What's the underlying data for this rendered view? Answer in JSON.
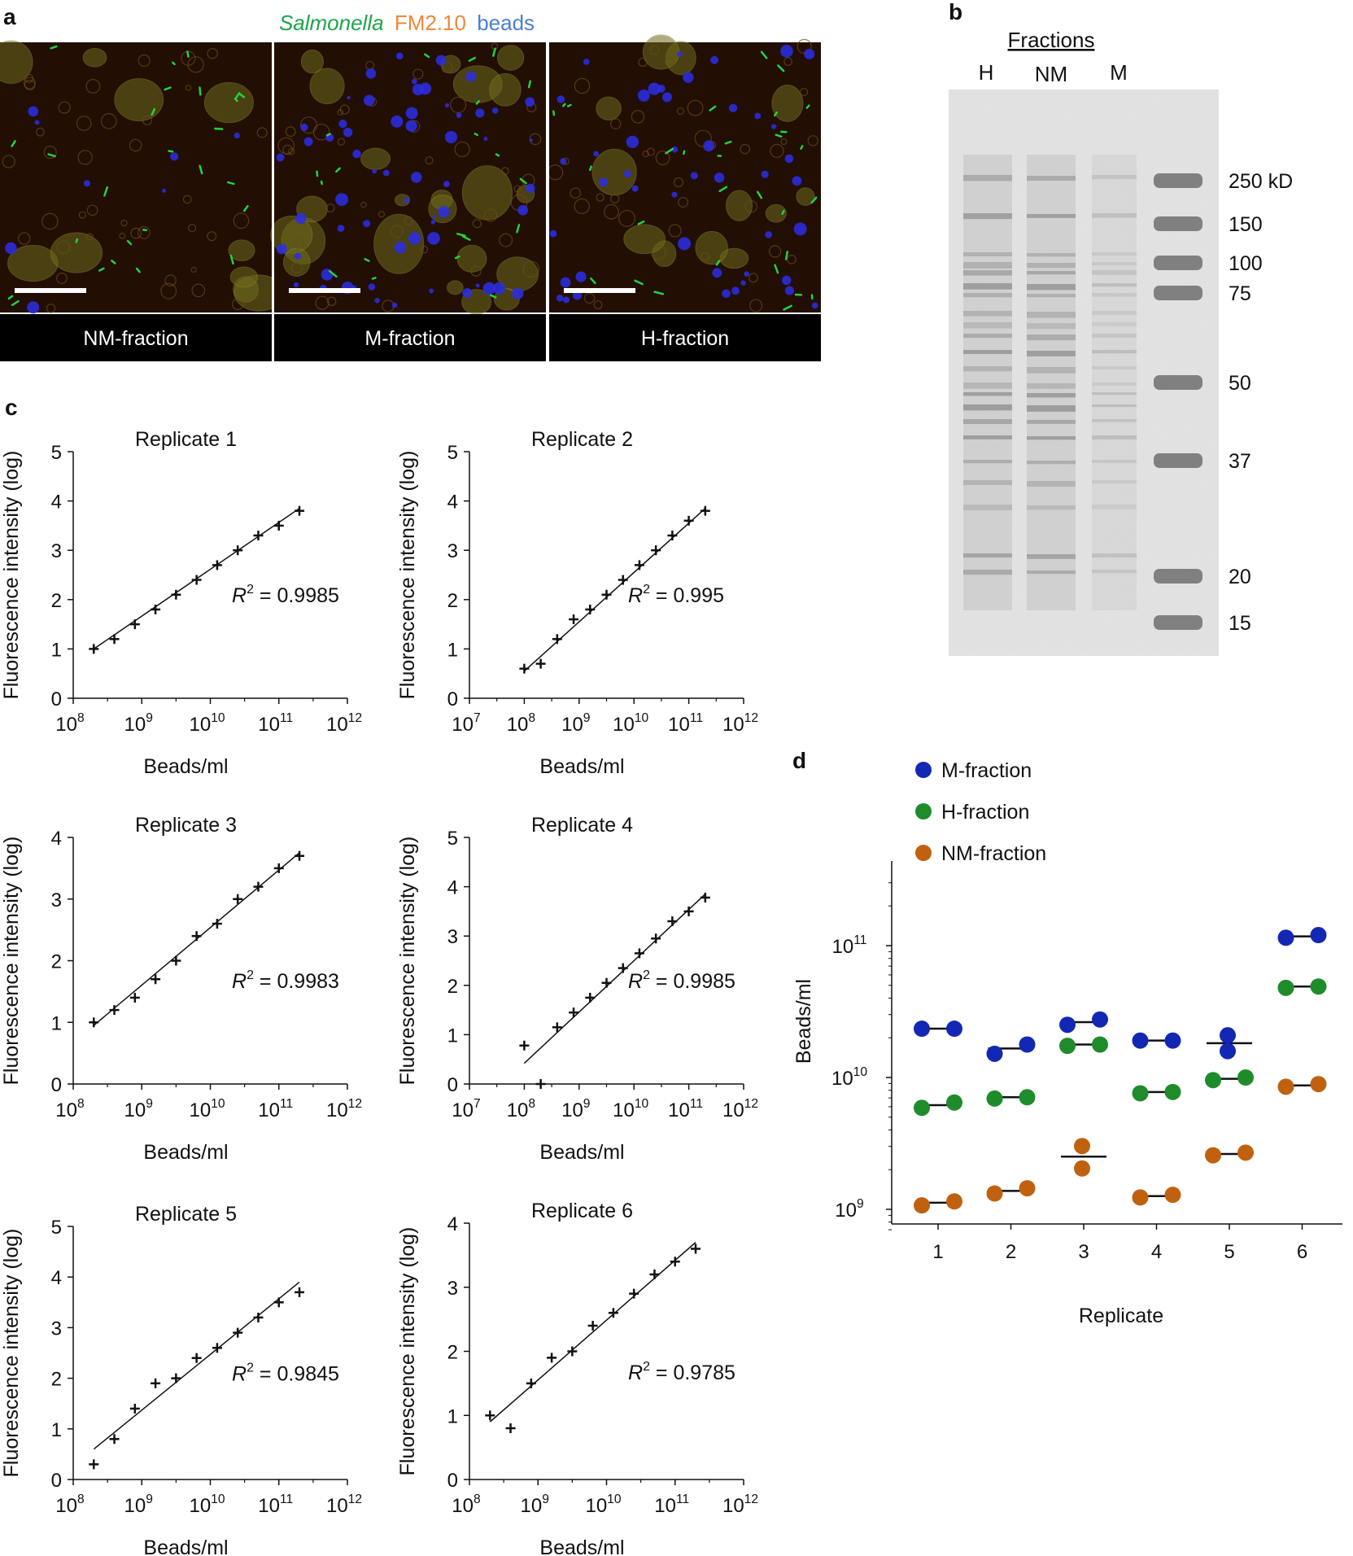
{
  "panel_labels": {
    "a": "a",
    "b": "b",
    "c": "c",
    "d": "d"
  },
  "panel_a": {
    "legend": {
      "salmonella": "Salmonella",
      "fm": "FM2.10",
      "beads": "beads"
    },
    "colors": {
      "salmonella": "#1ca64a",
      "fm": "#f0883a",
      "beads": "#4a7fd0"
    },
    "images": [
      {
        "label": "NM-fraction"
      },
      {
        "label": "M-fraction"
      },
      {
        "label": "H-fraction"
      }
    ]
  },
  "panel_b": {
    "header": "Fractions",
    "lanes": [
      "H",
      "NM",
      "M"
    ],
    "markers": [
      {
        "label": "250 kD",
        "kd": 250
      },
      {
        "label": "150",
        "kd": 150
      },
      {
        "label": "100",
        "kd": 100
      },
      {
        "label": "75",
        "kd": 75
      },
      {
        "label": "50",
        "kd": 50
      },
      {
        "label": "37",
        "kd": 37
      },
      {
        "label": "20",
        "kd": 20
      },
      {
        "label": "15",
        "kd": 15
      }
    ]
  },
  "chart_data": [
    {
      "type": "scatter",
      "title": "Replicate 1",
      "xlabel": "Beads/ml",
      "ylabel": "Fluorescence intensity (log)",
      "x_scale": "log",
      "x_ticks": [
        8,
        9,
        10,
        11,
        12
      ],
      "y_ticks": [
        0,
        1,
        2,
        3,
        4,
        5
      ],
      "ylim": [
        0,
        5
      ],
      "points": [
        [
          8.3,
          1.0
        ],
        [
          8.6,
          1.2
        ],
        [
          8.9,
          1.5
        ],
        [
          9.2,
          1.8
        ],
        [
          9.5,
          2.1
        ],
        [
          9.8,
          2.4
        ],
        [
          10.1,
          2.7
        ],
        [
          10.4,
          3.0
        ],
        [
          10.7,
          3.3
        ],
        [
          11.0,
          3.5
        ],
        [
          11.3,
          3.8
        ]
      ],
      "fit": [
        [
          8.3,
          1.0
        ],
        [
          11.3,
          3.85
        ]
      ],
      "r2": "0.9985"
    },
    {
      "type": "scatter",
      "title": "Replicate 2",
      "xlabel": "Beads/ml",
      "ylabel": "Fluorescence intensity (log)",
      "x_scale": "log",
      "x_ticks": [
        7,
        8,
        9,
        10,
        11,
        12
      ],
      "y_ticks": [
        0,
        1,
        2,
        3,
        4,
        5
      ],
      "ylim": [
        0,
        5
      ],
      "points": [
        [
          8.0,
          0.6
        ],
        [
          8.3,
          0.7
        ],
        [
          8.6,
          1.2
        ],
        [
          8.9,
          1.6
        ],
        [
          9.2,
          1.8
        ],
        [
          9.5,
          2.1
        ],
        [
          9.8,
          2.4
        ],
        [
          10.1,
          2.7
        ],
        [
          10.4,
          3.0
        ],
        [
          10.7,
          3.3
        ],
        [
          11.0,
          3.6
        ],
        [
          11.3,
          3.8
        ]
      ],
      "fit": [
        [
          8.0,
          0.55
        ],
        [
          11.3,
          3.85
        ]
      ],
      "r2": "0.995"
    },
    {
      "type": "scatter",
      "title": "Replicate 3",
      "xlabel": "Beads/ml",
      "ylabel": "Fluorescence intensity (log)",
      "x_scale": "log",
      "x_ticks": [
        8,
        9,
        10,
        11,
        12
      ],
      "y_ticks": [
        0,
        1,
        2,
        3,
        4
      ],
      "ylim": [
        0,
        4
      ],
      "points": [
        [
          8.3,
          1.0
        ],
        [
          8.6,
          1.2
        ],
        [
          8.9,
          1.4
        ],
        [
          9.2,
          1.7
        ],
        [
          9.5,
          2.0
        ],
        [
          9.8,
          2.4
        ],
        [
          10.1,
          2.6
        ],
        [
          10.4,
          3.0
        ],
        [
          10.7,
          3.2
        ],
        [
          11.0,
          3.5
        ],
        [
          11.3,
          3.7
        ]
      ],
      "fit": [
        [
          8.3,
          0.95
        ],
        [
          11.3,
          3.75
        ]
      ],
      "r2": "0.9983"
    },
    {
      "type": "scatter",
      "title": "Replicate 4",
      "xlabel": "Beads/ml",
      "ylabel": "Fluorescence intensity (log)",
      "x_scale": "log",
      "x_ticks": [
        7,
        8,
        9,
        10,
        11,
        12
      ],
      "y_ticks": [
        0,
        1,
        2,
        3,
        4,
        5
      ],
      "ylim": [
        0,
        5
      ],
      "points": [
        [
          8.0,
          0.78
        ],
        [
          8.3,
          0.0
        ],
        [
          8.6,
          1.15
        ],
        [
          8.9,
          1.45
        ],
        [
          9.2,
          1.75
        ],
        [
          9.5,
          2.05
        ],
        [
          9.8,
          2.35
        ],
        [
          10.1,
          2.65
        ],
        [
          10.4,
          2.95
        ],
        [
          10.7,
          3.3
        ],
        [
          11.0,
          3.5
        ],
        [
          11.3,
          3.78
        ]
      ],
      "fit": [
        [
          8.0,
          0.42
        ],
        [
          11.3,
          3.85
        ]
      ],
      "r2": "0.9985"
    },
    {
      "type": "scatter",
      "title": "Replicate 5",
      "xlabel": "Beads/ml",
      "ylabel": "Fluorescence intensity (log)",
      "x_scale": "log",
      "x_ticks": [
        8,
        9,
        10,
        11,
        12
      ],
      "y_ticks": [
        0,
        1,
        2,
        3,
        4,
        5
      ],
      "ylim": [
        0,
        5
      ],
      "points": [
        [
          8.3,
          0.3
        ],
        [
          8.6,
          0.8
        ],
        [
          8.9,
          1.4
        ],
        [
          9.2,
          1.9
        ],
        [
          9.5,
          2.0
        ],
        [
          9.8,
          2.4
        ],
        [
          10.1,
          2.6
        ],
        [
          10.4,
          2.9
        ],
        [
          10.7,
          3.2
        ],
        [
          11.0,
          3.5
        ],
        [
          11.3,
          3.7
        ]
      ],
      "fit": [
        [
          8.3,
          0.6
        ],
        [
          11.3,
          3.9
        ]
      ],
      "r2": "0.9845"
    },
    {
      "type": "scatter",
      "title": "Replicate 6",
      "xlabel": "Beads/ml",
      "ylabel": "Fluorescence intensity (log)",
      "x_scale": "log",
      "x_ticks": [
        8,
        9,
        10,
        11,
        12
      ],
      "y_ticks": [
        0,
        1,
        2,
        3,
        4
      ],
      "ylim": [
        0,
        4
      ],
      "points": [
        [
          8.3,
          1.0
        ],
        [
          8.6,
          0.8
        ],
        [
          8.9,
          1.5
        ],
        [
          9.2,
          1.9
        ],
        [
          9.5,
          2.0
        ],
        [
          9.8,
          2.4
        ],
        [
          10.1,
          2.6
        ],
        [
          10.4,
          2.9
        ],
        [
          10.7,
          3.2
        ],
        [
          11.0,
          3.4
        ],
        [
          11.3,
          3.6
        ]
      ],
      "fit": [
        [
          8.3,
          0.9
        ],
        [
          11.3,
          3.7
        ]
      ],
      "r2": "0.9785"
    },
    {
      "type": "scatter",
      "xlabel": "Replicate",
      "ylabel": "Beads/ml",
      "y_scale": "log",
      "y_ticks": [
        9,
        10,
        11
      ],
      "ylim": [
        8.8,
        11.6
      ],
      "categories": [
        "1",
        "2",
        "3",
        "4",
        "5",
        "6"
      ],
      "series": [
        {
          "name": "M-fraction",
          "color": "#1228b4",
          "values": [
            [
              10.37,
              10.37
            ],
            [
              10.18,
              10.25
            ],
            [
              10.4,
              10.44
            ],
            [
              10.28,
              10.28
            ],
            [
              10.32,
              10.2
            ],
            [
              11.06,
              11.08
            ]
          ],
          "mean": [
            10.37,
            10.22,
            10.42,
            10.28,
            10.26,
            11.07
          ]
        },
        {
          "name": "H-fraction",
          "color": "#1e8c2a",
          "values": [
            [
              9.77,
              9.81
            ],
            [
              9.84,
              9.85
            ],
            [
              10.24,
              10.25
            ],
            [
              9.88,
              9.89
            ],
            [
              9.98,
              10.0
            ],
            [
              10.68,
              10.69
            ]
          ],
          "mean": [
            9.79,
            9.85,
            10.25,
            9.89,
            9.99,
            10.69
          ]
        },
        {
          "name": "NM-fraction",
          "color": "#c0610f",
          "values": [
            [
              9.03,
              9.06
            ],
            [
              9.12,
              9.16
            ],
            [
              9.48,
              9.31
            ],
            [
              9.09,
              9.11
            ],
            [
              9.41,
              9.43
            ],
            [
              9.93,
              9.95
            ]
          ],
          "mean": [
            9.05,
            9.14,
            9.4,
            9.1,
            9.42,
            9.94
          ]
        }
      ]
    }
  ]
}
